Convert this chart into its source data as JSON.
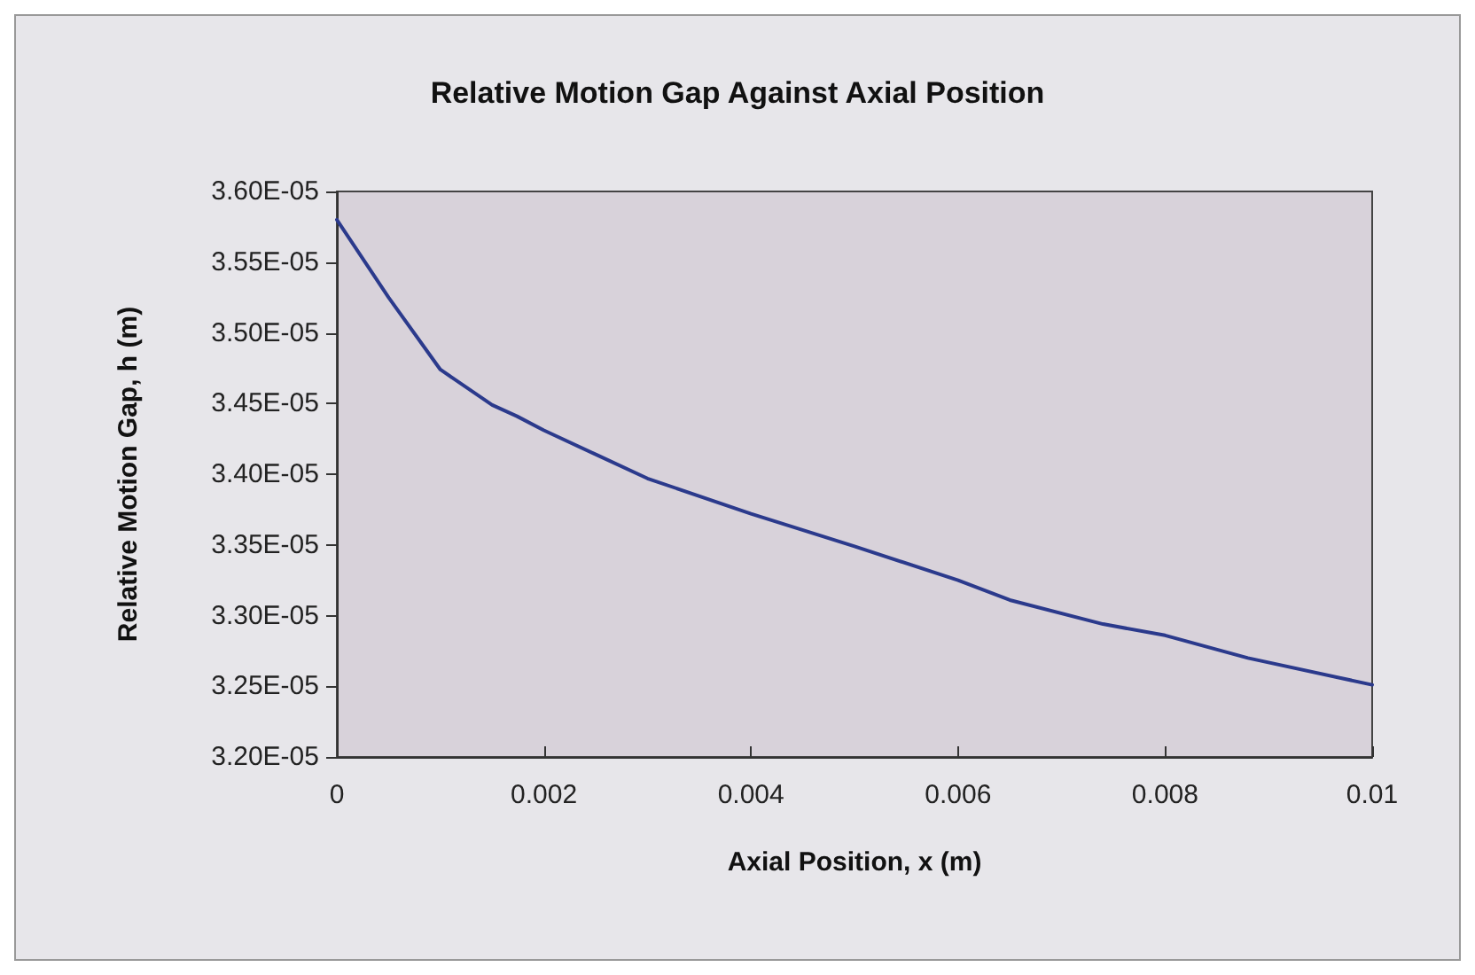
{
  "chart_data": {
    "type": "line",
    "title": "Relative Motion Gap Against Axial Position",
    "xlabel": "Axial Position, x (m)",
    "ylabel": "Relative Motion Gap, h (m)",
    "x": [
      0,
      0.0005,
      0.001,
      0.0015,
      0.00174,
      0.002,
      0.0025,
      0.003,
      0.004,
      0.005,
      0.006,
      0.0065,
      0.0074,
      0.008,
      0.0088,
      0.01
    ],
    "series": [
      {
        "color": "#2b3a8c",
        "values": [
          3.58e-05,
          3.525e-05,
          3.474e-05,
          3.449e-05,
          3.441e-05,
          3.431e-05,
          3.414e-05,
          3.397e-05,
          3.372e-05,
          3.349e-05,
          3.325e-05,
          3.311e-05,
          3.294e-05,
          3.286e-05,
          3.27e-05,
          3.251e-05
        ]
      }
    ],
    "xlim": [
      0,
      0.01
    ],
    "xticks": [
      0,
      0.002,
      0.004,
      0.006,
      0.008,
      0.01
    ],
    "ylim": [
      3.2e-05,
      3.6e-05
    ],
    "yticks": [
      {
        "value": 3.2e-05,
        "label": "3.20E-05"
      },
      {
        "value": 3.25e-05,
        "label": "3.25E-05"
      },
      {
        "value": 3.3e-05,
        "label": "3.30E-05"
      },
      {
        "value": 3.35e-05,
        "label": "3.35E-05"
      },
      {
        "value": 3.4e-05,
        "label": "3.40E-05"
      },
      {
        "value": 3.45e-05,
        "label": "3.45E-05"
      },
      {
        "value": 3.5e-05,
        "label": "3.50E-05"
      },
      {
        "value": 3.55e-05,
        "label": "3.55E-05"
      },
      {
        "value": 3.6e-05,
        "label": "3.60E-05"
      }
    ],
    "grid": false,
    "marker": "none",
    "line_style": "solid"
  }
}
